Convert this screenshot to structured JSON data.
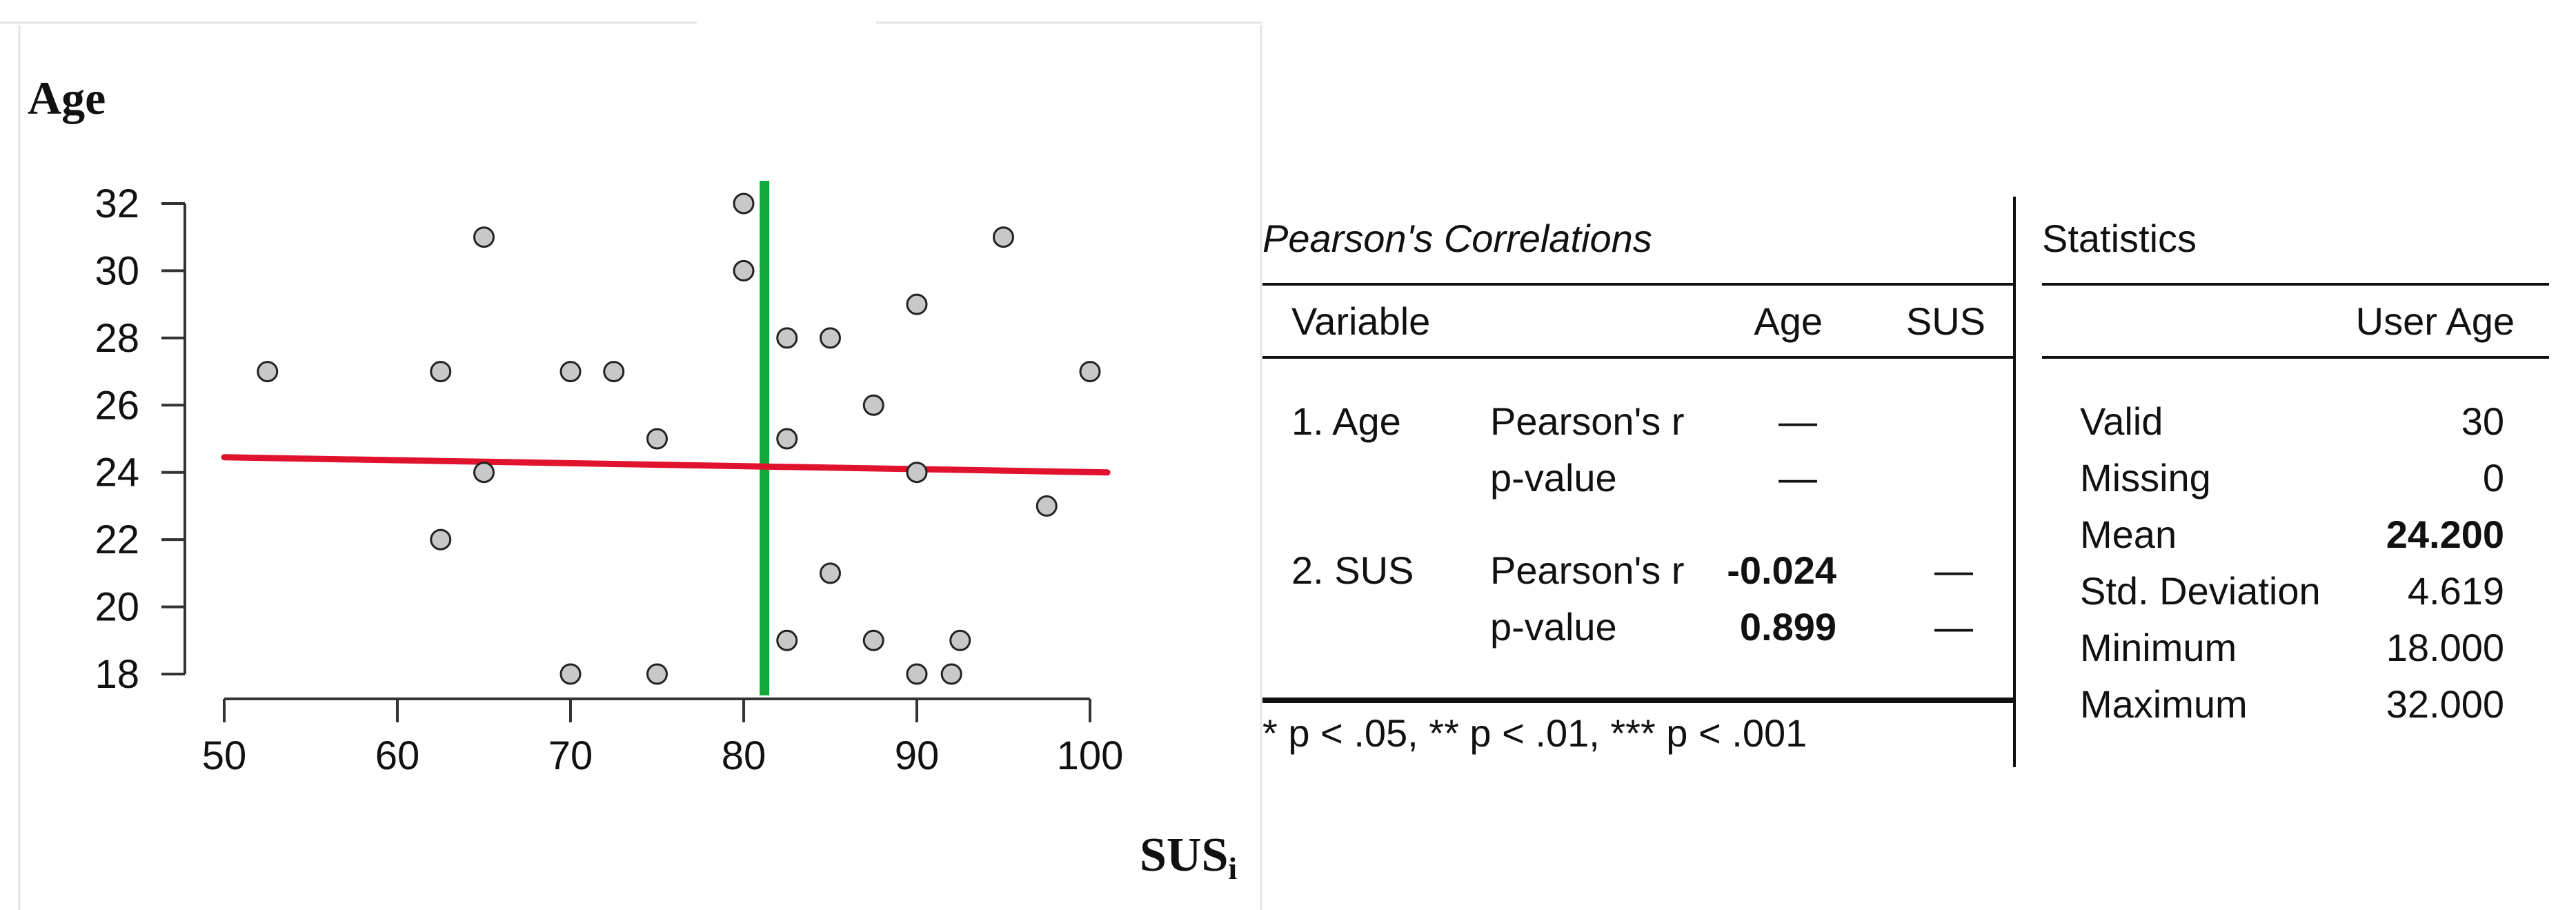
{
  "chart_data": {
    "type": "scatter",
    "ylabel": "Age",
    "xlabel": "SUS",
    "xlabel_subscript": "i",
    "xlim": [
      50,
      100
    ],
    "ylim": [
      18,
      32
    ],
    "xticks": [
      "50",
      "60",
      "70",
      "80",
      "90",
      "100"
    ],
    "yticks": [
      "18",
      "20",
      "22",
      "24",
      "26",
      "28",
      "30",
      "32"
    ],
    "grid": false,
    "points": [
      {
        "x": 52.5,
        "y": 27
      },
      {
        "x": 62.5,
        "y": 27
      },
      {
        "x": 62.5,
        "y": 22
      },
      {
        "x": 65,
        "y": 31
      },
      {
        "x": 65,
        "y": 24
      },
      {
        "x": 70,
        "y": 27
      },
      {
        "x": 70,
        "y": 18
      },
      {
        "x": 72.5,
        "y": 27
      },
      {
        "x": 75,
        "y": 25
      },
      {
        "x": 75,
        "y": 18
      },
      {
        "x": 80,
        "y": 32
      },
      {
        "x": 80,
        "y": 30
      },
      {
        "x": 82.5,
        "y": 28
      },
      {
        "x": 82.5,
        "y": 25
      },
      {
        "x": 82.5,
        "y": 19
      },
      {
        "x": 85,
        "y": 28
      },
      {
        "x": 85,
        "y": 21
      },
      {
        "x": 87.5,
        "y": 26
      },
      {
        "x": 87.5,
        "y": 19
      },
      {
        "x": 90,
        "y": 29
      },
      {
        "x": 90,
        "y": 24
      },
      {
        "x": 90,
        "y": 18
      },
      {
        "x": 92,
        "y": 18
      },
      {
        "x": 92.5,
        "y": 19
      },
      {
        "x": 95,
        "y": 31
      },
      {
        "x": 97.5,
        "y": 23
      },
      {
        "x": 100,
        "y": 27
      }
    ],
    "regression_line": {
      "x": [
        50,
        101
      ],
      "y": [
        24.45,
        24.0
      ],
      "color": "#e0122d"
    },
    "mean_line": {
      "x": 81.2,
      "color": "#14a83a"
    },
    "point_fill": "#c8c8c8"
  },
  "correlations": {
    "title": "Pearson's Correlations",
    "headers": {
      "variable": "Variable",
      "age": "Age",
      "sus": "SUS"
    },
    "rows": [
      {
        "var": "1. Age",
        "stat": "Pearson's r",
        "age": "—",
        "sus": ""
      },
      {
        "var": "",
        "stat": "p-value",
        "age": "—",
        "sus": ""
      },
      {
        "var": "2. SUS",
        "stat": "Pearson's r",
        "age": "-0.024",
        "sus": "—"
      },
      {
        "var": "",
        "stat": "p-value",
        "age": "0.899",
        "sus": "—"
      }
    ],
    "footnote": "* p < .05, ** p < .01, *** p < .001"
  },
  "statistics": {
    "title": "Statistics",
    "column": "User Age",
    "rows": [
      {
        "label": "Valid",
        "value": "30",
        "bold": false
      },
      {
        "label": "Missing",
        "value": "0",
        "bold": false
      },
      {
        "label": "Mean",
        "value": "24.200",
        "bold": true
      },
      {
        "label": "Std. Deviation",
        "value": "4.619",
        "bold": false
      },
      {
        "label": "Minimum",
        "value": "18.000",
        "bold": false
      },
      {
        "label": "Maximum",
        "value": "32.000",
        "bold": false
      }
    ]
  }
}
